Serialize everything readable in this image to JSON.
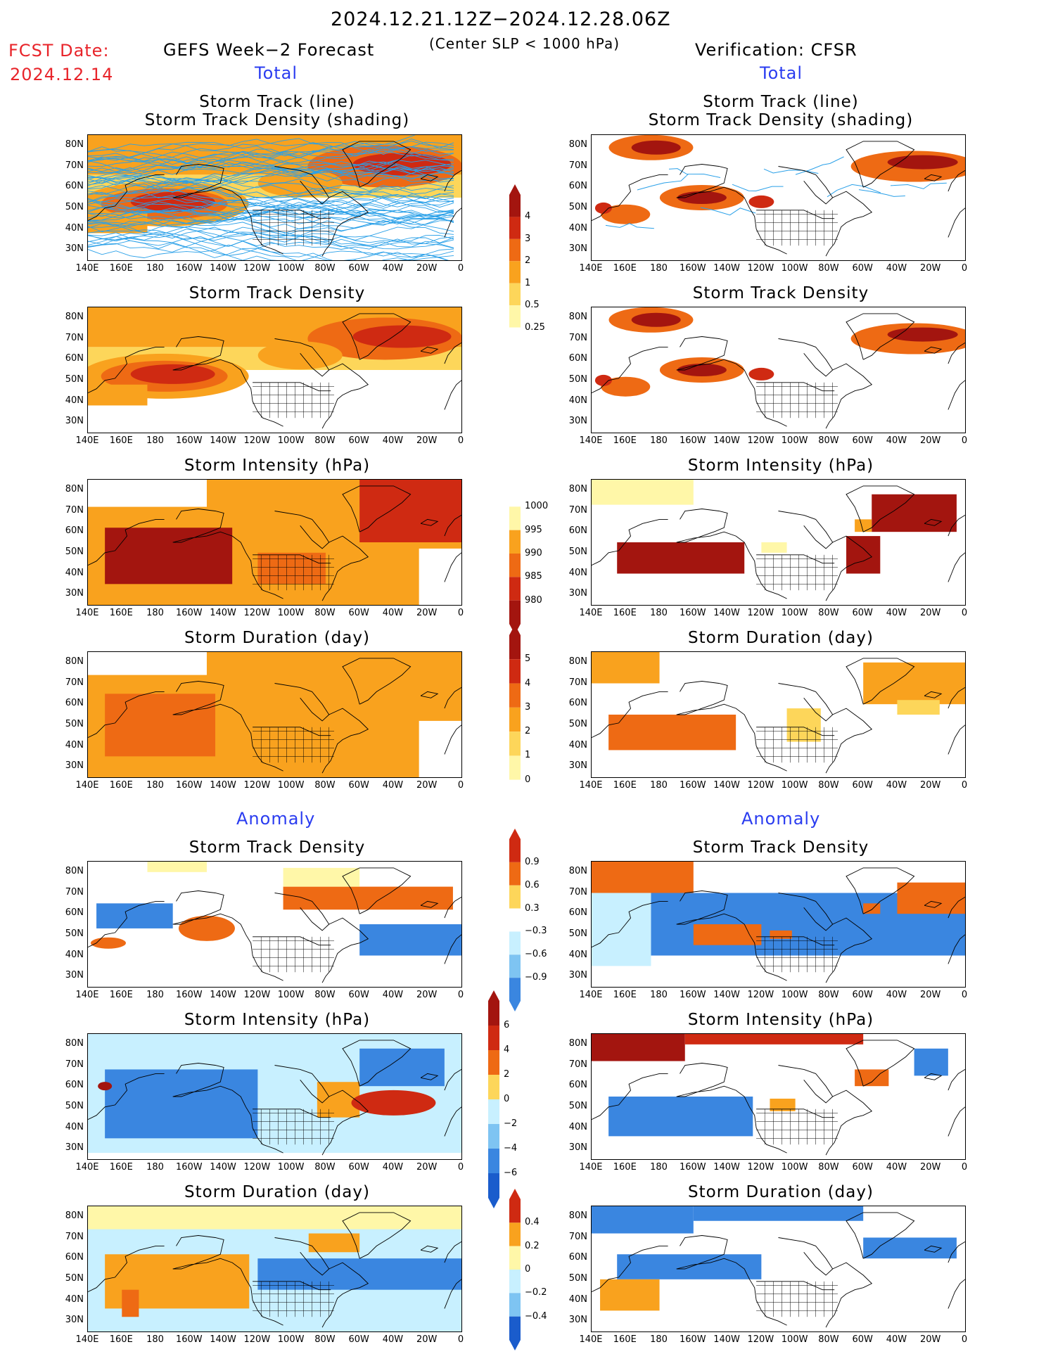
{
  "header": {
    "date_range": "2024.12.21.12Z−2024.12.28.06Z",
    "criterion": "(Center SLP < 1000 hPa)",
    "fcst_label": "FCST Date:",
    "fcst_date": "2024.12.14",
    "left_model": "GEFS Week−2 Forecast",
    "right_model": "Verification: CFSR",
    "total_left": "Total",
    "total_right": "Total",
    "anomaly_left": "Anomaly",
    "anomaly_right": "Anomaly"
  },
  "panel_titles": {
    "track_line": "Storm Track (line)",
    "track_density_shading": "Storm Track Density (shading)",
    "track_density": "Storm Track Density",
    "intensity": "Storm Intensity (hPa)",
    "duration": "Storm Duration (day)"
  },
  "axes": {
    "lat_ticks": [
      "80N",
      "70N",
      "60N",
      "50N",
      "40N",
      "30N"
    ],
    "lon_ticks": [
      "140E",
      "160E",
      "180",
      "160W",
      "140W",
      "120W",
      "100W",
      "80W",
      "60W",
      "40W",
      "20W",
      "0"
    ]
  },
  "colorbars": {
    "density_total": [
      "4",
      "3",
      "2",
      "1",
      "0.5",
      "0.25"
    ],
    "intensity_total": [
      "1000",
      "995",
      "990",
      "985",
      "980"
    ],
    "duration_total": [
      "5",
      "4",
      "3",
      "2",
      "1",
      "0"
    ],
    "density_anom": [
      "0.9",
      "0.6",
      "0.3",
      "−0.3",
      "−0.6",
      "−0.9"
    ],
    "intensity_anom": [
      "6",
      "4",
      "2",
      "0",
      "−2",
      "−4",
      "−6"
    ],
    "duration_anom": [
      "0.4",
      "0.2",
      "0",
      "−0.2",
      "−0.4"
    ]
  },
  "colors": {
    "warm_1": "#fff7a8",
    "warm_2": "#fdd65a",
    "warm_3": "#f9a21e",
    "warm_4": "#ee6a14",
    "warm_5": "#cf2a12",
    "warm_6": "#a3150f",
    "cool_1": "#c8f0ff",
    "cool_2": "#7ec4f2",
    "cool_3": "#3a86e0",
    "cool_4": "#1a5ccc",
    "track_line": "#2aa0e8",
    "header_red": "#e8242a",
    "header_blue": "#2a3cf0"
  }
}
